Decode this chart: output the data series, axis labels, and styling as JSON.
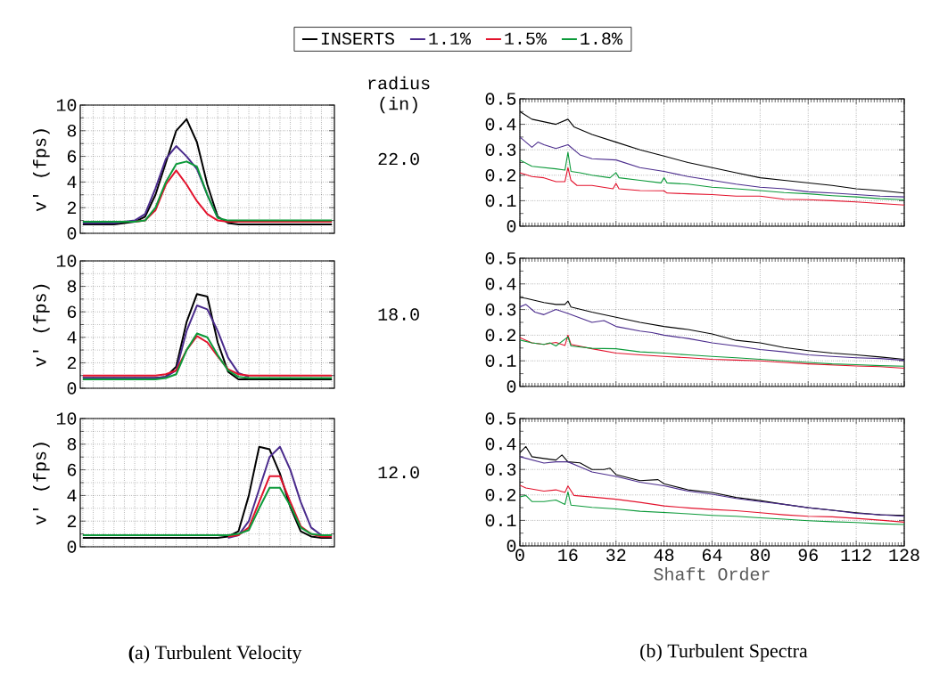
{
  "chart_data": [
    {
      "type": "line",
      "ylabel": "v' (fps)",
      "categories": [
        null,
        null,
        null,
        null,
        null,
        null,
        null,
        null,
        null,
        null,
        null,
        null,
        null,
        null,
        null,
        null,
        null,
        null,
        null,
        null,
        null,
        null,
        null,
        null,
        null
      ],
      "ylim": [
        0,
        10
      ],
      "yticks": [
        0,
        2,
        4,
        6,
        8,
        10
      ],
      "grid": true,
      "tick_labels": "y",
      "legend": "top",
      "annotations": [
        "radius (in)",
        "22.0"
      ],
      "series": [
        {
          "name": "INSERTS",
          "color": "#000000",
          "values": [
            0.7,
            0.7,
            0.7,
            0.7,
            0.8,
            0.9,
            1.3,
            3.0,
            5.5,
            8.0,
            8.9,
            7.1,
            3.8,
            1.3,
            0.8,
            0.7,
            0.7,
            0.7,
            0.7,
            0.7,
            0.7,
            0.7,
            0.7,
            0.7,
            0.7
          ]
        },
        {
          "name": "1.1%",
          "color": "#4a2b8c",
          "values": [
            0.8,
            0.8,
            0.8,
            0.8,
            0.9,
            1.0,
            1.5,
            3.5,
            5.8,
            6.8,
            6.0,
            5.0,
            3.0,
            1.2,
            null,
            null,
            null,
            null,
            null,
            null,
            null,
            null,
            null,
            null,
            null
          ]
        },
        {
          "name": "1.5%",
          "color": "#e3122c",
          "values": [
            null,
            null,
            null,
            null,
            null,
            0.9,
            1.0,
            1.8,
            3.8,
            4.9,
            3.8,
            2.5,
            1.5,
            1.0,
            0.9,
            0.9,
            0.9,
            0.9,
            0.9,
            0.9,
            0.9,
            0.9,
            0.9,
            0.9,
            0.9
          ]
        },
        {
          "name": "1.8%",
          "color": "#0c9a3a",
          "values": [
            0.9,
            0.9,
            0.9,
            0.9,
            0.9,
            0.9,
            1.0,
            2.0,
            4.0,
            5.4,
            5.6,
            5.2,
            3.0,
            1.2,
            1.0,
            1.0,
            1.0,
            1.0,
            1.0,
            1.0,
            1.0,
            1.0,
            1.0,
            1.0,
            1.0
          ]
        }
      ]
    },
    {
      "type": "line",
      "xlim": [
        0,
        128
      ],
      "xticks": [
        0,
        16,
        32,
        48,
        64,
        80,
        96,
        112,
        128
      ],
      "ylim": [
        0,
        0.5
      ],
      "yticks": [
        0,
        0.1,
        0.2,
        0.3,
        0.4,
        0.5
      ],
      "grid": true,
      "tick_labels": "y",
      "series": [
        {
          "color": "#000000",
          "x": [
            0,
            4,
            8,
            12,
            16,
            18,
            24,
            32,
            40,
            48,
            56,
            64,
            72,
            80,
            88,
            96,
            104,
            112,
            120,
            128
          ],
          "values": [
            0.45,
            0.42,
            0.41,
            0.4,
            0.42,
            0.39,
            0.36,
            0.33,
            0.3,
            0.275,
            0.25,
            0.23,
            0.21,
            0.19,
            0.18,
            0.17,
            0.16,
            0.147,
            0.14,
            0.13
          ]
        },
        {
          "color": "#4a2b8c",
          "x": [
            0,
            4,
            6,
            8,
            12,
            16,
            20,
            24,
            32,
            40,
            48,
            56,
            64,
            72,
            80,
            88,
            96,
            104,
            112,
            120,
            128
          ],
          "values": [
            0.35,
            0.31,
            0.33,
            0.32,
            0.305,
            0.32,
            0.28,
            0.265,
            0.26,
            0.23,
            0.215,
            0.195,
            0.18,
            0.165,
            0.153,
            0.147,
            0.135,
            0.13,
            0.124,
            0.118,
            0.115
          ]
        },
        {
          "color": "#e3122c",
          "x": [
            0,
            4,
            8,
            12,
            15,
            16,
            17,
            19,
            24,
            31,
            32,
            33,
            40,
            48,
            49,
            56,
            64,
            72,
            80,
            88,
            96,
            104,
            112,
            120,
            128
          ],
          "values": [
            0.21,
            0.195,
            0.19,
            0.175,
            0.175,
            0.23,
            0.18,
            0.16,
            0.16,
            0.147,
            0.168,
            0.147,
            0.14,
            0.139,
            0.13,
            0.127,
            0.124,
            0.118,
            0.118,
            0.106,
            0.104,
            0.1,
            0.095,
            0.089,
            0.083
          ]
        },
        {
          "color": "#0c9a3a",
          "x": [
            0,
            4,
            8,
            12,
            15,
            16,
            17,
            20,
            24,
            30,
            32,
            33,
            40,
            47,
            48,
            49,
            56,
            64,
            72,
            80,
            88,
            96,
            104,
            112,
            120,
            128
          ],
          "values": [
            0.26,
            0.235,
            0.23,
            0.225,
            0.22,
            0.29,
            0.215,
            0.21,
            0.2,
            0.19,
            0.21,
            0.19,
            0.18,
            0.17,
            0.19,
            0.17,
            0.165,
            0.153,
            0.147,
            0.14,
            0.132,
            0.127,
            0.12,
            0.115,
            0.108,
            0.104
          ]
        }
      ]
    },
    {
      "type": "line",
      "ylabel": "v' (fps)",
      "categories": [
        null,
        null,
        null,
        null,
        null,
        null,
        null,
        null,
        null,
        null,
        null,
        null,
        null,
        null,
        null,
        null,
        null,
        null,
        null,
        null,
        null,
        null,
        null,
        null,
        null
      ],
      "ylim": [
        0,
        10
      ],
      "yticks": [
        0,
        2,
        4,
        6,
        8,
        10
      ],
      "grid": true,
      "tick_labels": "y",
      "annotations": [
        "18.0"
      ],
      "series": [
        {
          "color": "#000000",
          "values": [
            0.8,
            0.8,
            0.8,
            0.8,
            0.8,
            0.8,
            0.8,
            0.8,
            0.9,
            1.7,
            5.2,
            7.4,
            7.2,
            3.6,
            1.3,
            0.7,
            0.7,
            0.7,
            0.7,
            0.7,
            0.7,
            0.7,
            0.7,
            0.7,
            0.7
          ]
        },
        {
          "color": "#4a2b8c",
          "values": [
            0.8,
            0.8,
            0.8,
            0.8,
            0.8,
            0.8,
            0.8,
            0.8,
            0.9,
            1.4,
            4.5,
            6.5,
            6.2,
            4.5,
            2.4,
            1.2,
            0.9,
            null,
            null,
            null,
            null,
            null,
            null,
            null,
            null
          ]
        },
        {
          "color": "#e3122c",
          "values": [
            1.0,
            1.0,
            1.0,
            1.0,
            1.0,
            1.0,
            1.0,
            1.0,
            1.1,
            1.4,
            3.0,
            4.1,
            3.6,
            2.5,
            1.5,
            1.1,
            1.0,
            1.0,
            1.0,
            1.0,
            1.0,
            1.0,
            1.0,
            1.0,
            1.0
          ]
        },
        {
          "color": "#0c9a3a",
          "values": [
            0.7,
            0.7,
            0.7,
            0.7,
            0.7,
            0.7,
            0.7,
            0.7,
            0.8,
            1.1,
            3.0,
            4.3,
            4.0,
            2.6,
            1.4,
            0.9,
            0.8,
            0.8,
            0.8,
            0.8,
            0.8,
            0.8,
            0.8,
            0.8,
            0.8
          ]
        }
      ]
    },
    {
      "type": "line",
      "xlim": [
        0,
        128
      ],
      "xticks": [
        0,
        16,
        32,
        48,
        64,
        80,
        96,
        112,
        128
      ],
      "ylim": [
        0,
        0.5
      ],
      "yticks": [
        0,
        0.1,
        0.2,
        0.3,
        0.4,
        0.5
      ],
      "grid": true,
      "tick_labels": "y",
      "series": [
        {
          "color": "#000000",
          "x": [
            0,
            2,
            8,
            12,
            15,
            16,
            17,
            24,
            32,
            40,
            48,
            56,
            64,
            72,
            80,
            88,
            96,
            104,
            112,
            120,
            128
          ],
          "values": [
            0.347,
            0.344,
            0.327,
            0.32,
            0.32,
            0.333,
            0.31,
            0.29,
            0.27,
            0.25,
            0.234,
            0.222,
            0.205,
            0.18,
            0.17,
            0.152,
            0.14,
            0.13,
            0.123,
            0.115,
            0.106
          ]
        },
        {
          "color": "#4a2b8c",
          "x": [
            0,
            2,
            5,
            8,
            12,
            16,
            24,
            28,
            32,
            40,
            44,
            48,
            56,
            64,
            72,
            80,
            88,
            96,
            104,
            112,
            120,
            128
          ],
          "values": [
            0.31,
            0.32,
            0.29,
            0.28,
            0.3,
            0.285,
            0.25,
            0.257,
            0.234,
            0.216,
            0.21,
            0.2,
            0.187,
            0.17,
            0.158,
            0.144,
            0.135,
            0.123,
            0.117,
            0.112,
            0.109,
            0.102
          ]
        },
        {
          "color": "#e3122c",
          "x": [
            0,
            4,
            8,
            12,
            15,
            16,
            17,
            24,
            32,
            40,
            48,
            56,
            64,
            72,
            80,
            88,
            96,
            104,
            112,
            120,
            128
          ],
          "values": [
            0.19,
            0.17,
            0.164,
            0.172,
            0.16,
            0.2,
            0.164,
            0.147,
            0.13,
            0.123,
            0.117,
            0.112,
            0.106,
            0.103,
            0.1,
            0.094,
            0.088,
            0.084,
            0.08,
            0.077,
            0.071
          ]
        },
        {
          "color": "#0c9a3a",
          "x": [
            0,
            4,
            8,
            10,
            12,
            16,
            17,
            24,
            32,
            40,
            48,
            56,
            64,
            72,
            80,
            88,
            96,
            104,
            112,
            120,
            128
          ],
          "values": [
            0.181,
            0.17,
            0.164,
            0.17,
            0.158,
            0.193,
            0.158,
            0.149,
            0.147,
            0.135,
            0.13,
            0.123,
            0.117,
            0.112,
            0.106,
            0.1,
            0.094,
            0.088,
            0.085,
            0.081,
            0.079
          ]
        }
      ]
    },
    {
      "type": "line",
      "ylabel": "v' (fps)",
      "title": "**(**a) Turbulent Velocity",
      "categories": [
        null,
        null,
        null,
        null,
        null,
        null,
        null,
        null,
        null,
        null,
        null,
        null,
        null,
        null,
        null,
        null,
        null,
        null,
        null,
        null,
        null,
        null,
        null,
        null,
        null
      ],
      "ylim": [
        0,
        10
      ],
      "yticks": [
        0,
        2,
        4,
        6,
        8,
        10
      ],
      "grid": true,
      "tick_labels": "y",
      "annotations": [
        "12.0"
      ],
      "series": [
        {
          "color": "#000000",
          "values": [
            0.7,
            0.7,
            0.7,
            0.7,
            0.7,
            0.7,
            0.7,
            0.7,
            0.7,
            0.7,
            0.7,
            0.7,
            0.7,
            0.7,
            0.8,
            1.2,
            4.0,
            7.8,
            7.6,
            5.7,
            3.1,
            1.2,
            0.8,
            0.7,
            0.7
          ]
        },
        {
          "color": "#4a2b8c",
          "values": [
            null,
            null,
            null,
            null,
            null,
            null,
            null,
            null,
            null,
            null,
            null,
            null,
            null,
            null,
            0.7,
            0.9,
            2.0,
            4.5,
            7.0,
            7.8,
            6.0,
            3.5,
            1.5,
            0.9,
            0.8
          ]
        },
        {
          "color": "#e3122c",
          "values": [
            null,
            null,
            null,
            null,
            null,
            null,
            null,
            null,
            null,
            null,
            null,
            null,
            null,
            null,
            0.8,
            0.9,
            1.5,
            3.5,
            5.5,
            5.5,
            3.5,
            1.6,
            1.0,
            0.8,
            0.8
          ]
        },
        {
          "color": "#0c9a3a",
          "values": [
            0.9,
            0.9,
            0.9,
            0.9,
            0.9,
            0.9,
            0.9,
            0.9,
            0.9,
            0.9,
            0.9,
            0.9,
            0.9,
            0.9,
            0.9,
            1.0,
            1.3,
            3.0,
            4.6,
            4.6,
            3.2,
            1.5,
            1.0,
            0.9,
            0.9
          ]
        }
      ]
    },
    {
      "type": "line",
      "xlabel": "Shaft Order",
      "title": "(b) Turbulent Spectra",
      "xlim": [
        0,
        128
      ],
      "xticks": [
        0,
        16,
        32,
        48,
        64,
        80,
        96,
        112,
        128
      ],
      "ylim": [
        0,
        0.5
      ],
      "yticks": [
        0,
        0.1,
        0.2,
        0.3,
        0.4,
        0.5
      ],
      "grid": true,
      "series": [
        {
          "color": "#000000",
          "x": [
            0,
            2,
            4,
            8,
            12,
            14,
            16,
            20,
            24,
            28,
            30,
            32,
            40,
            46,
            48,
            56,
            64,
            72,
            80,
            88,
            96,
            104,
            112,
            120,
            128
          ],
          "values": [
            0.366,
            0.39,
            0.35,
            0.343,
            0.337,
            0.357,
            0.33,
            0.326,
            0.3,
            0.3,
            0.305,
            0.28,
            0.256,
            0.26,
            0.244,
            0.22,
            0.21,
            0.19,
            0.178,
            0.163,
            0.15,
            0.14,
            0.13,
            0.122,
            0.12
          ]
        },
        {
          "color": "#4a2b8c",
          "x": [
            0,
            8,
            12,
            16,
            20,
            24,
            32,
            40,
            48,
            56,
            64,
            72,
            80,
            88,
            96,
            104,
            112,
            120,
            128
          ],
          "values": [
            0.35,
            0.325,
            0.33,
            0.33,
            0.31,
            0.29,
            0.273,
            0.25,
            0.236,
            0.215,
            0.203,
            0.186,
            0.174,
            0.163,
            0.15,
            0.14,
            0.128,
            0.122,
            0.116
          ]
        },
        {
          "color": "#e3122c",
          "x": [
            0,
            2,
            8,
            12,
            15,
            16,
            18,
            24,
            32,
            40,
            48,
            56,
            64,
            72,
            80,
            88,
            96,
            104,
            112,
            120,
            128
          ],
          "values": [
            0.238,
            0.227,
            0.215,
            0.22,
            0.21,
            0.235,
            0.198,
            0.192,
            0.183,
            0.171,
            0.157,
            0.149,
            0.143,
            0.138,
            0.13,
            0.122,
            0.116,
            0.114,
            0.108,
            0.101,
            0.093
          ]
        },
        {
          "color": "#0c9a3a",
          "x": [
            0,
            2,
            4,
            8,
            12,
            15,
            16,
            17,
            24,
            32,
            40,
            48,
            56,
            64,
            72,
            80,
            88,
            96,
            104,
            112,
            120,
            128
          ],
          "values": [
            0.192,
            0.198,
            0.174,
            0.174,
            0.18,
            0.163,
            0.212,
            0.16,
            0.151,
            0.145,
            0.136,
            0.131,
            0.126,
            0.12,
            0.116,
            0.11,
            0.105,
            0.099,
            0.095,
            0.092,
            0.087,
            0.084
          ]
        }
      ]
    }
  ]
}
